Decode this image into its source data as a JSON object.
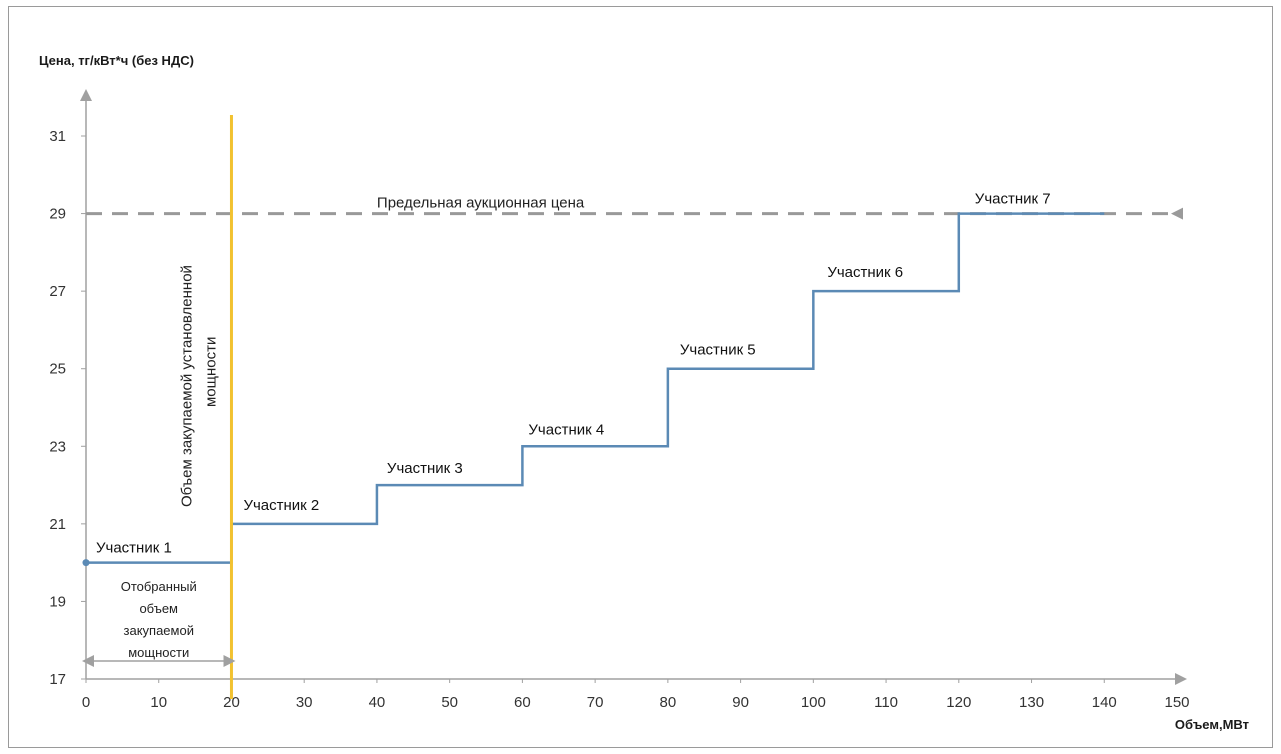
{
  "chart_data": {
    "type": "line",
    "ylabel": "Цена, тг/кВт*ч (без НДС)",
    "xlabel": "Объем,МВт",
    "xlim": [
      0,
      150
    ],
    "ylim": [
      17,
      32
    ],
    "x_ticks": [
      "0",
      "10",
      "20",
      "30",
      "40",
      "50",
      "60",
      "70",
      "80",
      "90",
      "100",
      "110",
      "120",
      "130",
      "140",
      "150"
    ],
    "y_ticks": [
      "17",
      "19",
      "21",
      "23",
      "25",
      "27",
      "29",
      "31"
    ],
    "grid": false,
    "series": [
      {
        "color": "#5b8ab5",
        "steps": [
          {
            "x0": 0,
            "x1": 20,
            "y": 20,
            "label": "Участник 1"
          },
          {
            "x0": 20,
            "x1": 40,
            "y": 21,
            "label": "Участник 2"
          },
          {
            "x0": 40,
            "x1": 60,
            "y": 22,
            "label": "Участник 3"
          },
          {
            "x0": 60,
            "x1": 80,
            "y": 23,
            "label": "Участник 4"
          },
          {
            "x0": 80,
            "x1": 100,
            "y": 25,
            "label": "Участник 5"
          },
          {
            "x0": 100,
            "x1": 120,
            "y": 27,
            "label": "Участник 6"
          },
          {
            "x0": 120,
            "x1": 140,
            "y": 29,
            "label": "Участник 7"
          }
        ]
      }
    ],
    "price_cap": {
      "y": 29,
      "label": "Предельная аукционная цена",
      "color": "#999999"
    },
    "volume_line": {
      "x": 20,
      "label_lines": [
        "Объем закупаемой установленной",
        "мощности"
      ],
      "color": "#f2c230"
    },
    "selected_volume": {
      "x0": 0,
      "x1": 20,
      "label_lines": [
        "Отобранный",
        "объем",
        "закупаемой",
        "мощности"
      ]
    }
  }
}
